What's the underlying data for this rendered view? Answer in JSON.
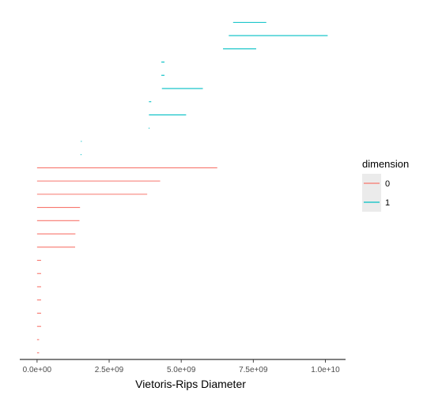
{
  "chart_data": {
    "type": "barcode",
    "xlabel": "Vietoris-Rips Diameter",
    "ylabel": "",
    "xlim": [
      -600000000,
      10700000000
    ],
    "x_ticks": [
      {
        "value": 0,
        "label": "0.0e+00"
      },
      {
        "value": 2500000000,
        "label": "2.5e+09"
      },
      {
        "value": 5000000000,
        "label": "5.0e+09"
      },
      {
        "value": 7500000000,
        "label": "7.5e+09"
      },
      {
        "value": 10000000000,
        "label": "1.0e+10"
      }
    ],
    "legend": {
      "title": "dimension",
      "position": "right",
      "entries": [
        {
          "label": "0",
          "color": "#F8766D"
        },
        {
          "label": "1",
          "color": "#00BFC4"
        }
      ]
    },
    "series": [
      {
        "name": "0",
        "color": "#F8766D",
        "bars": [
          {
            "birth": 0,
            "death": 6250000000
          },
          {
            "birth": 0,
            "death": 4270000000
          },
          {
            "birth": 0,
            "death": 3820000000
          },
          {
            "birth": 0,
            "death": 1490000000
          },
          {
            "birth": 0,
            "death": 1470000000
          },
          {
            "birth": 0,
            "death": 1330000000
          },
          {
            "birth": 0,
            "death": 1320000000
          },
          {
            "birth": 0,
            "death": 140000000
          },
          {
            "birth": 0,
            "death": 140000000
          },
          {
            "birth": 0,
            "death": 140000000
          },
          {
            "birth": 0,
            "death": 140000000
          },
          {
            "birth": 0,
            "death": 140000000
          },
          {
            "birth": 0,
            "death": 140000000
          },
          {
            "birth": 0,
            "death": 70000000
          },
          {
            "birth": 0,
            "death": 70000000
          }
        ]
      },
      {
        "name": "1",
        "color": "#00BFC4",
        "bars": [
          {
            "birth": 6800000000,
            "death": 7950000000
          },
          {
            "birth": 6650000000,
            "death": 10080000000
          },
          {
            "birth": 6450000000,
            "death": 7600000000
          },
          {
            "birth": 4310000000,
            "death": 4420000000
          },
          {
            "birth": 4310000000,
            "death": 4420000000
          },
          {
            "birth": 4330000000,
            "death": 5750000000
          },
          {
            "birth": 3880000000,
            "death": 3960000000
          },
          {
            "birth": 3880000000,
            "death": 5170000000
          },
          {
            "birth": 3870000000,
            "death": 3900000000
          },
          {
            "birth": 1520000000,
            "death": 1550000000
          },
          {
            "birth": 1510000000,
            "death": 1540000000
          }
        ]
      }
    ]
  }
}
